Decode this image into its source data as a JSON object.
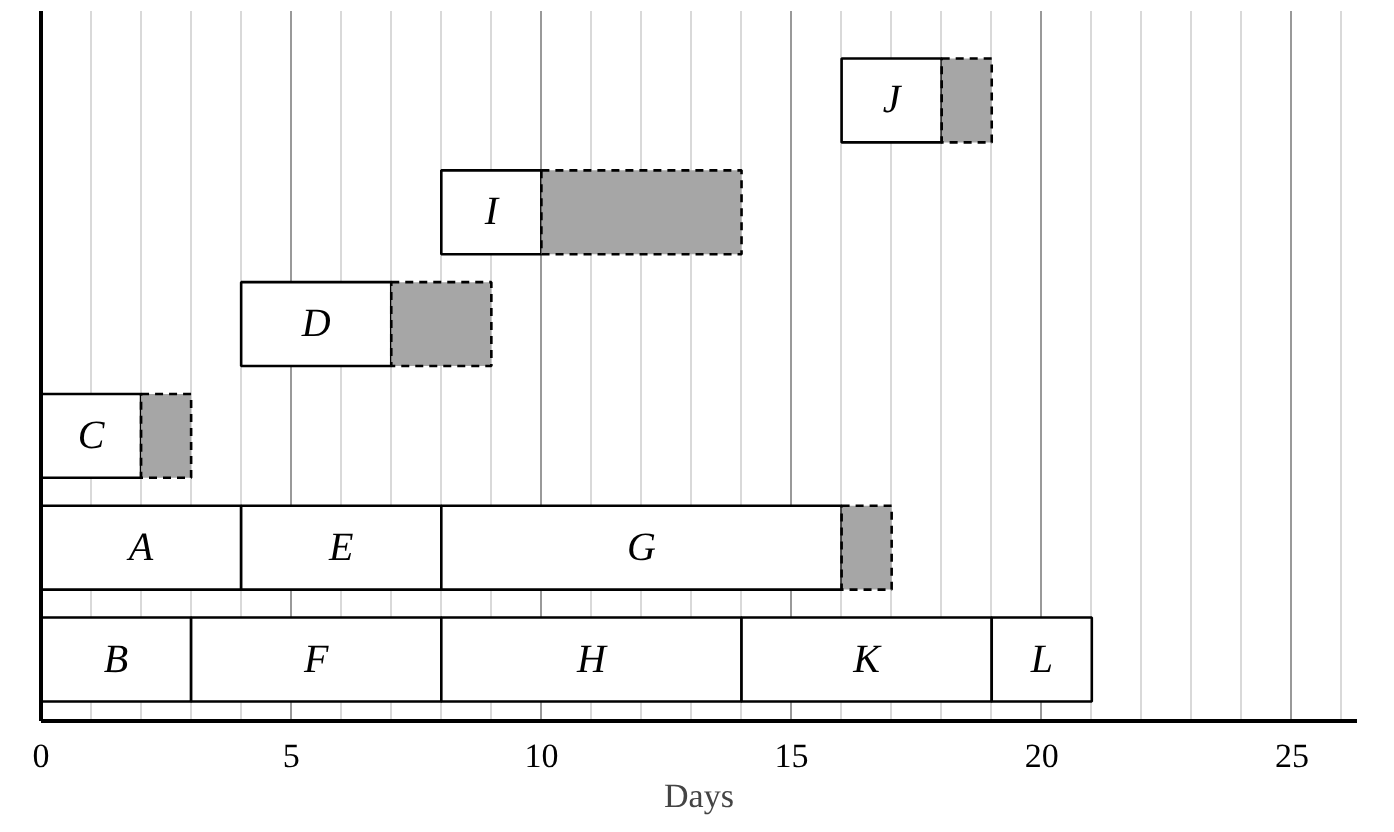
{
  "chart_data": {
    "type": "bar",
    "orientation": "horizontal",
    "xlabel": "Days",
    "categories": [
      null,
      null,
      null,
      null,
      null,
      null
    ],
    "series": [
      {
        "color": "#ffffff",
        "base": [
          16,
          8,
          4,
          0,
          0,
          0
        ],
        "values": [
          2,
          2,
          3,
          2,
          4,
          3
        ],
        "value_labels": [
          "J",
          "I",
          "D",
          "C",
          "A",
          "B"
        ]
      },
      {
        "color": "#ffffff",
        "base": [
          null,
          null,
          null,
          null,
          4,
          3
        ],
        "values": [
          null,
          null,
          null,
          null,
          4,
          5
        ],
        "value_labels": [
          null,
          null,
          null,
          null,
          "E",
          "F"
        ]
      },
      {
        "color": "#ffffff",
        "base": [
          null,
          null,
          null,
          null,
          8,
          8
        ],
        "values": [
          null,
          null,
          null,
          null,
          8,
          6
        ],
        "value_labels": [
          null,
          null,
          null,
          null,
          "G",
          "H"
        ]
      },
      {
        "color": "#ffffff",
        "base": [
          null,
          null,
          null,
          null,
          null,
          14
        ],
        "values": [
          null,
          null,
          null,
          null,
          null,
          5
        ],
        "value_labels": [
          null,
          null,
          null,
          null,
          null,
          "K"
        ]
      },
      {
        "color": "#ffffff",
        "base": [
          null,
          null,
          null,
          null,
          null,
          19
        ],
        "values": [
          null,
          null,
          null,
          null,
          null,
          2
        ],
        "value_labels": [
          null,
          null,
          null,
          null,
          null,
          "L"
        ]
      },
      {
        "color": "#a6a6a6",
        "line_style": "dashed",
        "base": [
          18,
          10,
          7,
          2,
          16,
          null
        ],
        "values": [
          1,
          4,
          2,
          1,
          1,
          null
        ]
      }
    ],
    "xlim": [
      0,
      26.3
    ],
    "xticks": [
      0,
      {
        "value": 1,
        "label": null
      },
      {
        "value": 2,
        "label": null
      },
      {
        "value": 3,
        "label": null
      },
      {
        "value": 4,
        "label": null
      },
      5,
      {
        "value": 6,
        "label": null
      },
      {
        "value": 7,
        "label": null
      },
      {
        "value": 8,
        "label": null
      },
      {
        "value": 9,
        "label": null
      },
      10,
      {
        "value": 11,
        "label": null
      },
      {
        "value": 12,
        "label": null
      },
      {
        "value": 13,
        "label": null
      },
      {
        "value": 14,
        "label": null
      },
      15,
      {
        "value": 16,
        "label": null
      },
      {
        "value": 17,
        "label": null
      },
      {
        "value": 18,
        "label": null
      },
      {
        "value": 19,
        "label": null
      },
      20,
      {
        "value": 21,
        "label": null
      },
      {
        "value": 22,
        "label": null
      },
      {
        "value": 23,
        "label": null
      },
      {
        "value": 24,
        "label": null
      },
      25,
      {
        "value": 26,
        "label": null
      }
    ],
    "grid": "x",
    "tick_labels": "x"
  }
}
